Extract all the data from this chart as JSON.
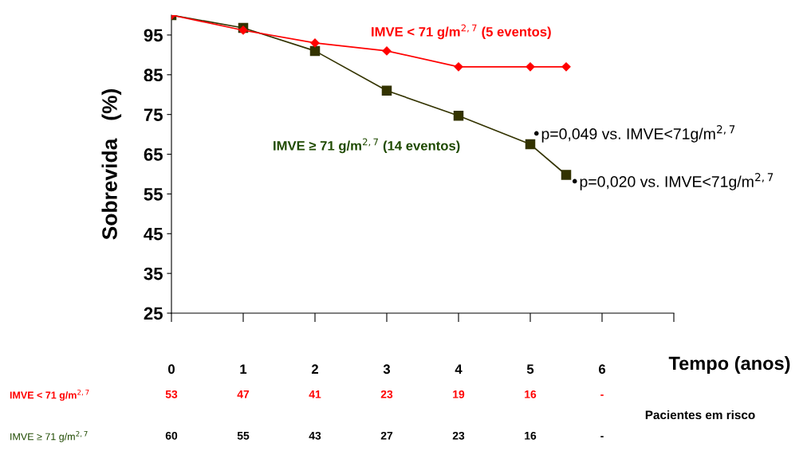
{
  "chart_data": {
    "type": "line",
    "ylabel": "Sobrevida   (%)",
    "xlabel": "Tempo (anos)",
    "x": [
      0,
      1,
      2,
      3,
      4,
      5,
      5.5
    ],
    "series": [
      {
        "color": "#ff0000",
        "marker": "diamond",
        "values": [
          100,
          96.2,
          93,
          91,
          87,
          87,
          87
        ]
      },
      {
        "color": "#333300",
        "marker": "square",
        "values": [
          100,
          96.8,
          91,
          81,
          74.7,
          67.5,
          59.8
        ]
      }
    ],
    "xlim": [
      0,
      7
    ],
    "xticks": [
      0,
      1,
      2,
      3,
      4,
      5,
      6,
      {
        "value": 7,
        "label": null
      }
    ],
    "ylim": [
      25,
      100
    ],
    "yticks": [
      25,
      35,
      45,
      55,
      65,
      75,
      85,
      95
    ],
    "grid": false,
    "legend": false,
    "annotations": [
      "IMVE < 71 g/m$^{2,7}$ (5 eventos)",
      "IMVE ≥ 71 g/m$^{2,7}$ (14 eventos)",
      "•p=0,049 vs. IMVE<71g/m$^{2,7}$",
      "•p=0,020 vs. IMVE<71g/m$^{2,7}$",
      "Pacientes em risco",
      "IMVE < 71 g/m$^{2,7}$",
      "53",
      "47",
      "41",
      "23",
      "19",
      "16",
      "-",
      "IMVE ≥ 71 g/m$^{2,7}$",
      "60",
      "55",
      "43",
      "27",
      "23",
      "16",
      "-"
    ]
  }
}
